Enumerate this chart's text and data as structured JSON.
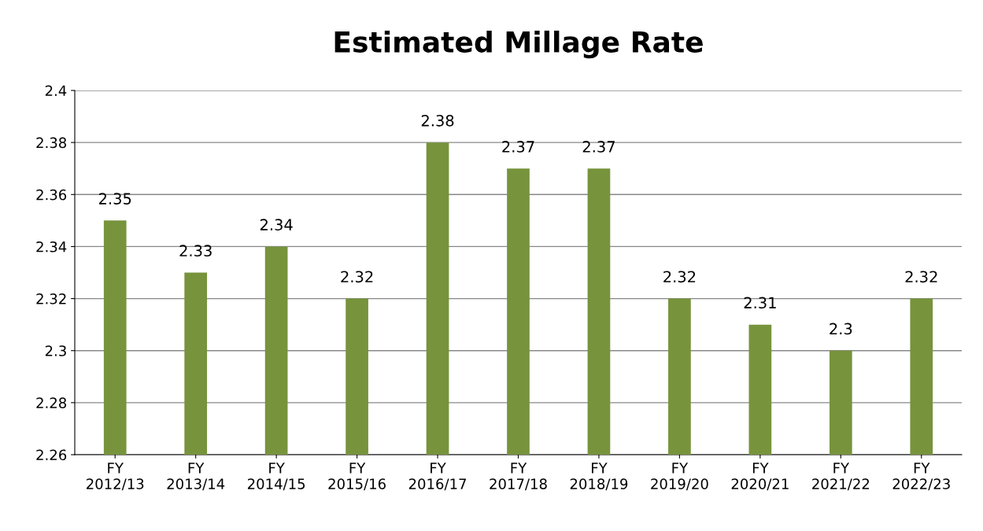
{
  "chart_data": {
    "type": "bar",
    "title": "Estimated Millage Rate",
    "categories": [
      "FY\n2012/13",
      "FY\n2013/14",
      "FY\n2014/15",
      "FY\n2015/16",
      "FY\n2016/17",
      "FY\n2017/18",
      "FY\n2018/19",
      "FY\n2019/20",
      "FY\n2020/21",
      "FY\n2021/22",
      "FY\n2022/23"
    ],
    "values": [
      2.35,
      2.33,
      2.34,
      2.32,
      2.38,
      2.37,
      2.37,
      2.32,
      2.31,
      2.3,
      2.32
    ],
    "color": "#77933c",
    "ylim": [
      2.26,
      2.4
    ],
    "yticks": [
      2.26,
      2.28,
      2.3,
      2.32,
      2.34,
      2.36,
      2.38,
      2.4
    ],
    "grid": "y",
    "data_labels": true,
    "legend": false
  }
}
